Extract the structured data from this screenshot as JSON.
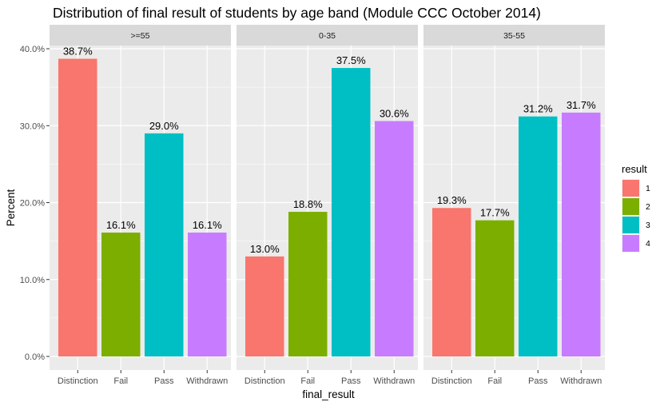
{
  "chart_data": {
    "type": "bar",
    "title": "Distribution of final result of students by age band (Module CCC October 2014)",
    "xlabel": "final_result",
    "ylabel": "Percent",
    "ylim": [
      0,
      40.5
    ],
    "y_ticks": [
      0,
      10,
      20,
      30,
      40
    ],
    "y_tick_labels": [
      "0.0%",
      "10.0%",
      "20.0%",
      "30.0%",
      "40.0%"
    ],
    "categories": [
      "Distinction",
      "Fail",
      "Pass",
      "Withdrawn"
    ],
    "grid": true,
    "legend": {
      "title": "result",
      "placement": "right",
      "entries": [
        {
          "label": "1",
          "color": "#F8766D"
        },
        {
          "label": "2",
          "color": "#7CAE00"
        },
        {
          "label": "3",
          "color": "#00BFC4"
        },
        {
          "label": "4",
          "color": "#C77CFF"
        }
      ]
    },
    "facets": [
      {
        "label": ">=55",
        "values": [
          38.7,
          16.1,
          29.0,
          16.1
        ],
        "value_labels": [
          "38.7%",
          "16.1%",
          "29.0%",
          "16.1%"
        ]
      },
      {
        "label": "0-35",
        "values": [
          13.0,
          18.8,
          37.5,
          30.6
        ],
        "value_labels": [
          "13.0%",
          "18.8%",
          "37.5%",
          "30.6%"
        ]
      },
      {
        "label": "35-55",
        "values": [
          19.3,
          17.7,
          31.2,
          31.7
        ],
        "value_labels": [
          "19.3%",
          "17.7%",
          "31.2%",
          "31.7%"
        ]
      }
    ]
  },
  "colors": {
    "panel_bg": "#EBEBEB",
    "strip_bg": "#D9D9D9",
    "grid": "#FFFFFF",
    "text": "#000000",
    "axis_text": "#4D4D4D",
    "strip_text": "#1A1A1A"
  }
}
